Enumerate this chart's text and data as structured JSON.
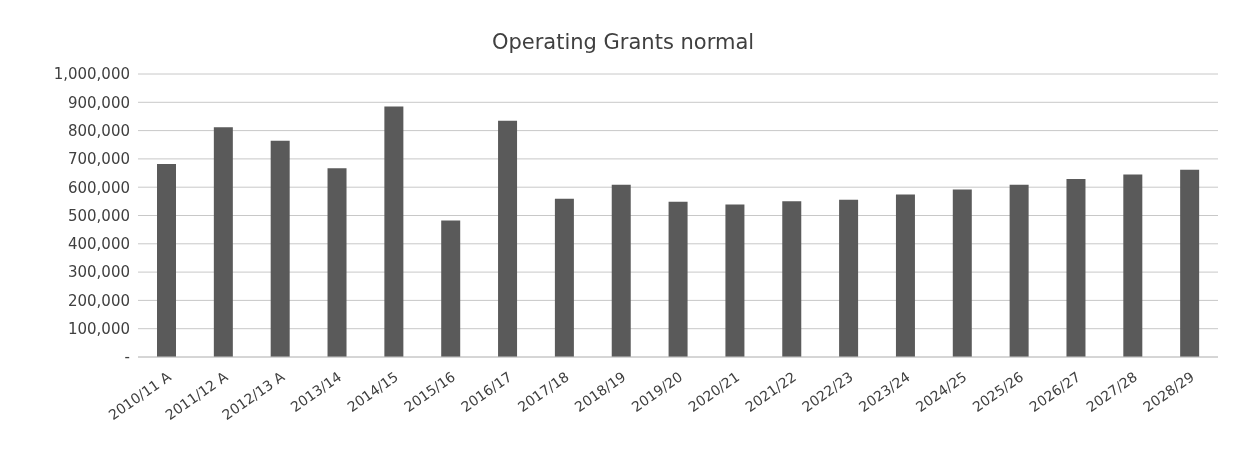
{
  "chart_data": {
    "type": "bar",
    "title": "Operating Grants normal",
    "categories": [
      "2010/11 A",
      "2011/12 A",
      "2012/13 A",
      "2013/14",
      "2014/15",
      "2015/16",
      "2016/17",
      "2017/18",
      "2018/19",
      "2019/20",
      "2020/21",
      "2021/22",
      "2022/23",
      "2023/24",
      "2024/25",
      "2025/26",
      "2026/27",
      "2027/28",
      "2028/29"
    ],
    "values": [
      682000,
      812000,
      764000,
      667000,
      885000,
      482000,
      835000,
      559000,
      609000,
      549000,
      539000,
      550000,
      556000,
      574000,
      592000,
      609000,
      629000,
      645000,
      662000
    ],
    "color": "#5a5a5a",
    "ylim": [
      0,
      1000000
    ],
    "yticks": [
      {
        "value": 0,
        "label": "-"
      },
      {
        "value": 100000,
        "label": "100,000"
      },
      {
        "value": 200000,
        "label": "200,000"
      },
      {
        "value": 300000,
        "label": "300,000"
      },
      {
        "value": 400000,
        "label": "400,000"
      },
      {
        "value": 500000,
        "label": "500,000"
      },
      {
        "value": 600000,
        "label": "600,000"
      },
      {
        "value": 700000,
        "label": "700,000"
      },
      {
        "value": 800000,
        "label": "800,000"
      },
      {
        "value": 900000,
        "label": "900,000"
      },
      {
        "value": 1000000,
        "label": "1,000,000"
      }
    ],
    "grid": "y",
    "legend": false
  }
}
